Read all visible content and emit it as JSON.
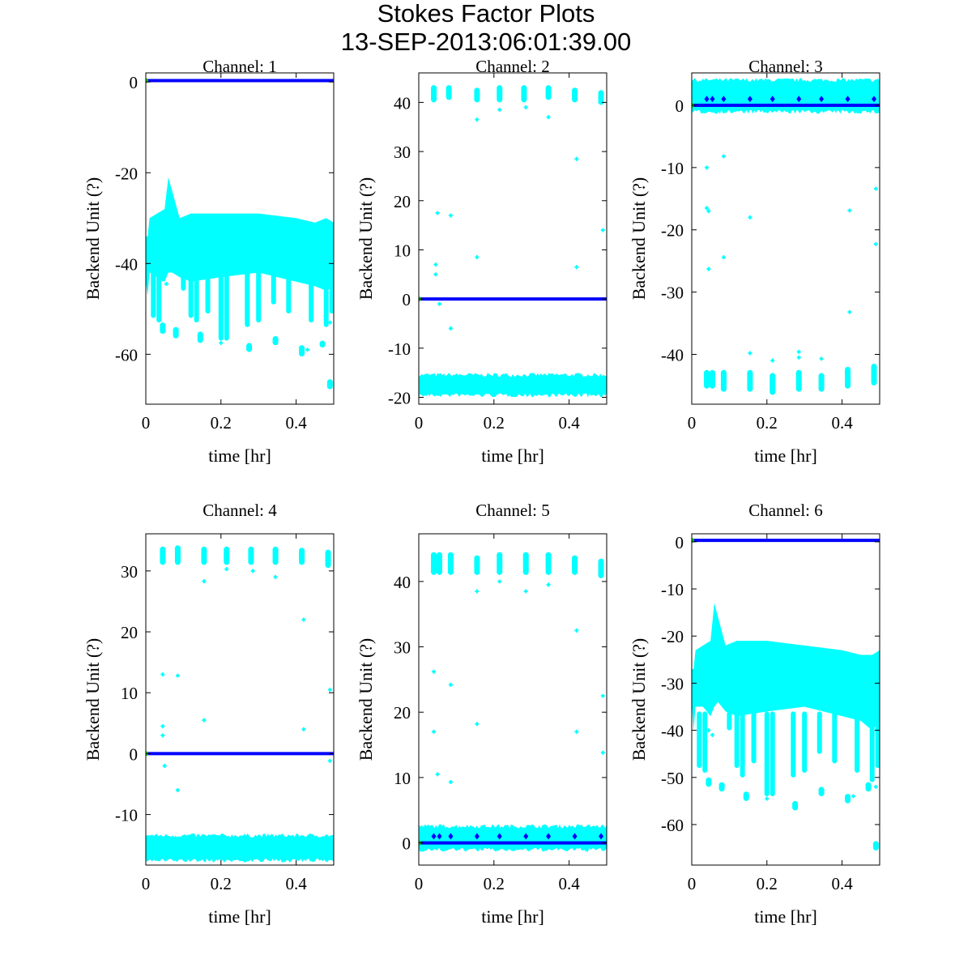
{
  "chart_data": {
    "type": "scatter",
    "title": "Stokes Factor Plots",
    "subtitle": "13-SEP-2013:06:01:39.00",
    "colors": {
      "band": "#00ffff",
      "line": "#0000ff",
      "start": "#00cc00",
      "axis": "#000000"
    },
    "panels": [
      {
        "title": "Channel: 1",
        "xlabel": "time [hr]",
        "ylabel": "Backend Unit (?)",
        "xlim": [
          0,
          0.5
        ],
        "ylim": [
          -71,
          2
        ],
        "xticks": [
          0,
          0.2,
          0.4
        ],
        "yticks": [
          0,
          -20,
          -40,
          -60
        ],
        "line_y": 0.3,
        "envelope": {
          "x": [
            0,
            0.005,
            0.01,
            0.03,
            0.05,
            0.06,
            0.07,
            0.09,
            0.12,
            0.2,
            0.3,
            0.4,
            0.45,
            0.48,
            0.5
          ],
          "top": [
            -34,
            -34,
            -30,
            -29,
            -28,
            -21,
            -24,
            -30,
            -29,
            -29,
            -29,
            -30,
            -31,
            -30,
            -31
          ],
          "bottom": [
            -44,
            -47,
            -42,
            -43,
            -44,
            -42,
            -42,
            -43,
            -44,
            -43,
            -42,
            -44,
            -45,
            -46,
            -45
          ]
        },
        "drops": [
          [
            0.02,
            -52
          ],
          [
            0.035,
            -53
          ],
          [
            0.1,
            -46
          ],
          [
            0.12,
            -52
          ],
          [
            0.135,
            -53
          ],
          [
            0.165,
            -51
          ],
          [
            0.2,
            -57
          ],
          [
            0.215,
            -57
          ],
          [
            0.27,
            -54
          ],
          [
            0.3,
            -53
          ],
          [
            0.34,
            -49
          ],
          [
            0.38,
            -51
          ],
          [
            0.44,
            -53
          ],
          [
            0.48,
            -54
          ],
          [
            0.495,
            -51
          ]
        ],
        "clusters": [
          [
            0.045,
            -53,
            -55.5
          ],
          [
            0.08,
            -54,
            -56.5
          ],
          [
            0.145,
            -55,
            -57.5
          ],
          [
            0.275,
            -57.5,
            -59.5
          ],
          [
            0.345,
            -56,
            -58
          ],
          [
            0.415,
            -58,
            -60.5
          ],
          [
            0.47,
            -57,
            -58.5
          ],
          [
            0.49,
            -65.5,
            -67.7
          ]
        ],
        "outliers": [
          [
            0.045,
            -35.5
          ],
          [
            0.04,
            -39.5
          ],
          [
            0.045,
            -43.5
          ],
          [
            0.055,
            -44.5
          ],
          [
            0.13,
            -35
          ],
          [
            0.135,
            -44
          ],
          [
            0.2,
            -57.5
          ],
          [
            0.43,
            -59
          ],
          [
            0.49,
            -53
          ]
        ],
        "markers_y": null
      },
      {
        "title": "Channel: 2",
        "xlabel": "time [hr]",
        "ylabel": "Backend Unit (?)",
        "xlim": [
          0,
          0.5
        ],
        "ylim": [
          -21.4,
          46
        ],
        "xticks": [
          0,
          0.2,
          0.4
        ],
        "yticks": [
          40,
          30,
          20,
          10,
          0,
          -10,
          -20
        ],
        "line_y": 0,
        "band": [
          -19.5,
          -15.5
        ],
        "clusters": [
          [
            0.04,
            40,
            43.5
          ],
          [
            0.08,
            40.5,
            43.5
          ],
          [
            0.155,
            40,
            43
          ],
          [
            0.215,
            40,
            43.5
          ],
          [
            0.28,
            40,
            43.5
          ],
          [
            0.345,
            40.5,
            43.5
          ],
          [
            0.415,
            40,
            43
          ],
          [
            0.485,
            39.5,
            42.5
          ]
        ],
        "outliers": [
          [
            0.05,
            17.5
          ],
          [
            0.085,
            17
          ],
          [
            0.045,
            7
          ],
          [
            0.045,
            5
          ],
          [
            0.155,
            8.5
          ],
          [
            0.085,
            -6
          ],
          [
            0.055,
            -1
          ],
          [
            0.155,
            36.5
          ],
          [
            0.215,
            38.5
          ],
          [
            0.285,
            39
          ],
          [
            0.345,
            37
          ],
          [
            0.42,
            28.5
          ],
          [
            0.42,
            6.5
          ],
          [
            0.49,
            14
          ]
        ],
        "markers_y": null
      },
      {
        "title": "Channel: 3",
        "xlabel": "time [hr]",
        "ylabel": "Backend Unit (?)",
        "xlim": [
          0,
          0.5
        ],
        "ylim": [
          -48,
          5.2
        ],
        "xticks": [
          0,
          0.2,
          0.4
        ],
        "yticks": [
          0,
          -10,
          -20,
          -30,
          -40
        ],
        "line_y": 0,
        "band": [
          -1,
          4
        ],
        "clusters": [
          [
            0.04,
            -42.5,
            -45.5
          ],
          [
            0.055,
            -42.5,
            -45.5
          ],
          [
            0.085,
            -42.5,
            -46
          ],
          [
            0.155,
            -42.5,
            -46
          ],
          [
            0.215,
            -43,
            -46.5
          ],
          [
            0.285,
            -42.5,
            -46
          ],
          [
            0.345,
            -43,
            -46
          ],
          [
            0.415,
            -42,
            -45.5
          ],
          [
            0.485,
            -41.5,
            -45
          ]
        ],
        "outliers": [
          [
            0.04,
            -10
          ],
          [
            0.085,
            -8.2
          ],
          [
            0.04,
            -16.5
          ],
          [
            0.045,
            -17
          ],
          [
            0.045,
            -26.3
          ],
          [
            0.085,
            -24.4
          ],
          [
            0.155,
            -18
          ],
          [
            0.155,
            -39.8
          ],
          [
            0.215,
            -41
          ],
          [
            0.285,
            -39.6
          ],
          [
            0.285,
            -40.5
          ],
          [
            0.345,
            -40.7
          ],
          [
            0.42,
            -16.9
          ],
          [
            0.42,
            -33.2
          ],
          [
            0.49,
            -13.4
          ],
          [
            0.49,
            -22.3
          ]
        ],
        "markers_y": 1
      },
      {
        "title": "Channel: 4",
        "xlabel": "time [hr]",
        "ylabel": "Backend Unit (?)",
        "xlim": [
          0,
          0.5
        ],
        "ylim": [
          -18.3,
          36.1
        ],
        "xticks": [
          0,
          0.2,
          0.4
        ],
        "yticks": [
          30,
          20,
          10,
          0,
          -10
        ],
        "line_y": 0,
        "band": [
          -17.5,
          -13.5
        ],
        "clusters": [
          [
            0.045,
            31,
            34
          ],
          [
            0.085,
            31,
            34.2
          ],
          [
            0.155,
            31,
            34
          ],
          [
            0.215,
            31,
            34
          ],
          [
            0.28,
            31,
            34
          ],
          [
            0.345,
            31,
            34
          ],
          [
            0.415,
            31,
            33.8
          ],
          [
            0.485,
            30.5,
            33.5
          ]
        ],
        "outliers": [
          [
            0.045,
            13
          ],
          [
            0.085,
            12.8
          ],
          [
            0.045,
            4.5
          ],
          [
            0.045,
            3
          ],
          [
            0.155,
            5.5
          ],
          [
            0.05,
            -2
          ],
          [
            0.085,
            -6
          ],
          [
            0.155,
            28.3
          ],
          [
            0.215,
            30.3
          ],
          [
            0.285,
            30
          ],
          [
            0.345,
            29
          ],
          [
            0.42,
            22
          ],
          [
            0.42,
            4
          ],
          [
            0.49,
            10.5
          ],
          [
            0.49,
            -1.2
          ]
        ],
        "markers_y": null
      },
      {
        "title": "Channel: 5",
        "xlabel": "time [hr]",
        "ylabel": "Backend Unit (?)",
        "xlim": [
          0,
          0.5
        ],
        "ylim": [
          -3.4,
          47.3
        ],
        "xticks": [
          0,
          0.2,
          0.4
        ],
        "yticks": [
          40,
          30,
          20,
          10,
          0
        ],
        "line_y": 0,
        "band": [
          -1,
          2.5
        ],
        "clusters": [
          [
            0.04,
            41,
            44.5
          ],
          [
            0.055,
            41,
            44.5
          ],
          [
            0.085,
            41,
            44.5
          ],
          [
            0.155,
            41,
            44
          ],
          [
            0.215,
            41,
            44.5
          ],
          [
            0.285,
            41,
            44.5
          ],
          [
            0.345,
            41,
            44.5
          ],
          [
            0.415,
            41,
            44
          ],
          [
            0.485,
            40.5,
            43.5
          ]
        ],
        "outliers": [
          [
            0.04,
            26.2
          ],
          [
            0.085,
            24.2
          ],
          [
            0.04,
            17
          ],
          [
            0.05,
            10.5
          ],
          [
            0.085,
            9.3
          ],
          [
            0.155,
            18.2
          ],
          [
            0.155,
            38.5
          ],
          [
            0.215,
            40
          ],
          [
            0.285,
            38.5
          ],
          [
            0.345,
            39.5
          ],
          [
            0.42,
            32.5
          ],
          [
            0.42,
            17
          ],
          [
            0.49,
            22.5
          ],
          [
            0.49,
            13.8
          ]
        ],
        "markers_y": 1
      },
      {
        "title": "Channel: 6",
        "xlabel": "time [hr]",
        "ylabel": "Backend Unit (?)",
        "xlim": [
          0,
          0.5
        ],
        "ylim": [
          -68.6,
          1.7
        ],
        "xticks": [
          0,
          0.2,
          0.4
        ],
        "yticks": [
          0,
          -10,
          -20,
          -30,
          -40,
          -50,
          -60
        ],
        "line_y": 0.3,
        "envelope": {
          "x": [
            0,
            0.005,
            0.01,
            0.03,
            0.05,
            0.06,
            0.07,
            0.09,
            0.12,
            0.2,
            0.3,
            0.4,
            0.45,
            0.48,
            0.5
          ],
          "top": [
            -27,
            -27,
            -23,
            -22,
            -21,
            -13,
            -16,
            -22,
            -21,
            -21,
            -22,
            -23,
            -24,
            -24,
            -23
          ],
          "bottom": [
            -34,
            -40,
            -35,
            -35,
            -37,
            -35,
            -34,
            -36,
            -37,
            -36,
            -35,
            -37,
            -38,
            -40,
            -38
          ]
        },
        "drops": [
          [
            0.02,
            -48
          ],
          [
            0.035,
            -49
          ],
          [
            0.1,
            -40
          ],
          [
            0.12,
            -48
          ],
          [
            0.135,
            -50
          ],
          [
            0.165,
            -47
          ],
          [
            0.2,
            -54
          ],
          [
            0.215,
            -54
          ],
          [
            0.27,
            -50
          ],
          [
            0.3,
            -49
          ],
          [
            0.34,
            -45
          ],
          [
            0.38,
            -47
          ],
          [
            0.44,
            -49
          ],
          [
            0.48,
            -51
          ],
          [
            0.495,
            -48
          ]
        ],
        "clusters": [
          [
            0.045,
            -50,
            -52
          ],
          [
            0.08,
            -51,
            -53
          ],
          [
            0.145,
            -53,
            -55
          ],
          [
            0.275,
            -55,
            -57
          ],
          [
            0.345,
            -52,
            -54
          ],
          [
            0.415,
            -53.5,
            -55.5
          ],
          [
            0.47,
            -51,
            -53
          ],
          [
            0.49,
            -63.5,
            -65.5
          ]
        ],
        "outliers": [
          [
            0.045,
            -27
          ],
          [
            0.04,
            -31.5
          ],
          [
            0.045,
            -40
          ],
          [
            0.055,
            -41
          ],
          [
            0.13,
            -28
          ],
          [
            0.135,
            -40
          ],
          [
            0.2,
            -54.5
          ],
          [
            0.43,
            -54
          ],
          [
            0.49,
            -52
          ]
        ],
        "markers_y": null
      }
    ]
  }
}
